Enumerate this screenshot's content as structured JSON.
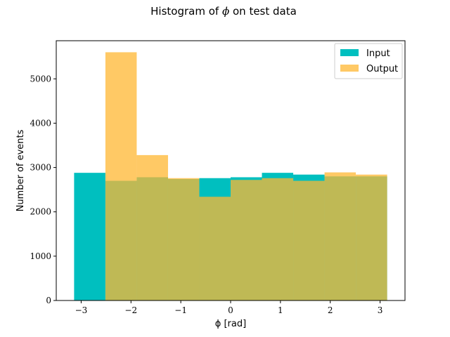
{
  "chart_data": {
    "type": "histogram",
    "title": "Histogram of ϕ on test data",
    "title_prefix": "Histogram of",
    "title_symbol": "ϕ",
    "title_suffix": "on test data",
    "xlabel": "ϕ [rad]",
    "ylabel": "Number of events",
    "xlim": [
      -3.5,
      3.5
    ],
    "ylim": [
      0,
      5860
    ],
    "bin_edges": [
      -3.1416,
      -2.5133,
      -1.885,
      -1.2566,
      -0.6283,
      0.0,
      0.6283,
      1.2566,
      1.885,
      2.5133,
      3.1416
    ],
    "series": [
      {
        "name": "Input",
        "color": "#00bfbf",
        "values": [
          2880,
          2700,
          2780,
          2740,
          2760,
          2780,
          2880,
          2840,
          2800,
          2800
        ]
      },
      {
        "name": "Output",
        "color": "#ffb732",
        "opacity": 0.75,
        "values": [
          0,
          5600,
          3280,
          2760,
          2340,
          2720,
          2760,
          2700,
          2890,
          2840
        ]
      }
    ],
    "x_ticks": [
      {
        "value": -3,
        "label": "−3"
      },
      {
        "value": -2,
        "label": "−2"
      },
      {
        "value": -1,
        "label": "−1"
      },
      {
        "value": 0,
        "label": "0"
      },
      {
        "value": 1,
        "label": "1"
      },
      {
        "value": 2,
        "label": "2"
      },
      {
        "value": 3,
        "label": "3"
      }
    ],
    "y_ticks": [
      {
        "value": 0,
        "label": "0"
      },
      {
        "value": 1000,
        "label": "1000"
      },
      {
        "value": 2000,
        "label": "2000"
      },
      {
        "value": 3000,
        "label": "3000"
      },
      {
        "value": 4000,
        "label": "4000"
      },
      {
        "value": 5000,
        "label": "5000"
      }
    ],
    "legend": {
      "position": "top-right",
      "entries": [
        "Input",
        "Output"
      ]
    },
    "grid": false
  }
}
